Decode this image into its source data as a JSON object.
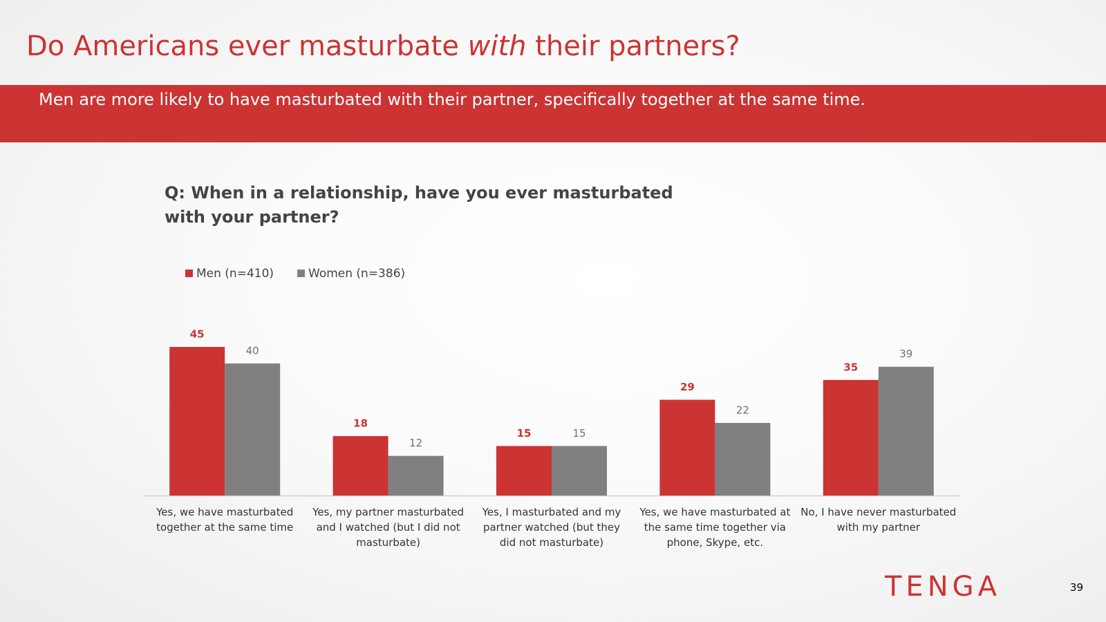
{
  "header": {
    "title_before": "Do Americans ever masturbate",
    "title_emphasis": "with",
    "title_after": "their partners?",
    "subtitle": "Men are more likely to have masturbated with their partner, specifically together at the same time."
  },
  "chart_data": {
    "type": "bar",
    "question_prefix": "Q:",
    "question": "When in a relationship, have you ever masturbated with your partner?",
    "categories": [
      "Yes, we have masturbated together at the same time",
      "Yes, my partner masturbated and I watched (but I did not masturbate)",
      "Yes, I masturbated and my partner watched (but they did not masturbate)",
      "Yes, we have masturbated at the same time together via phone, Skype, etc.",
      "No, I have never masturbated with my partner"
    ],
    "series": [
      {
        "name": "Men (n=410)",
        "color": "#cc3333",
        "values": [
          45,
          18,
          15,
          29,
          35
        ]
      },
      {
        "name": "Women (n=386)",
        "color": "#808080",
        "values": [
          40,
          12,
          15,
          22,
          39
        ]
      }
    ]
  },
  "footer": {
    "logo": "TENGA",
    "page_number": "39"
  }
}
